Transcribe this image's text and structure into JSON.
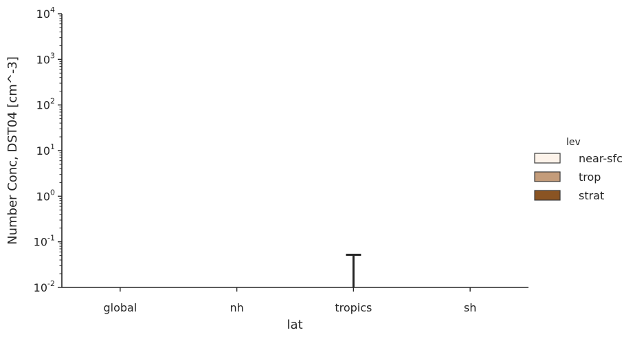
{
  "chart_data": {
    "type": "bar",
    "xlabel": "lat",
    "ylabel": "Number Conc, DST04 [cm^-3]",
    "yscale": "log",
    "ylim": [
      0.01,
      10000
    ],
    "y_ticks": [
      {
        "base": "10",
        "exp": "-2"
      },
      {
        "base": "10",
        "exp": "-1"
      },
      {
        "base": "10",
        "exp": "0"
      },
      {
        "base": "10",
        "exp": "1"
      },
      {
        "base": "10",
        "exp": "2"
      },
      {
        "base": "10",
        "exp": "3"
      },
      {
        "base": "10",
        "exp": "4"
      }
    ],
    "categories": [
      "global",
      "nh",
      "tropics",
      "sh"
    ],
    "legend": {
      "title": "lev",
      "placement": "right",
      "entries": [
        {
          "label": "near-sfc",
          "color": "#fdf3ea"
        },
        {
          "label": "trop",
          "color": "#c49c7a"
        },
        {
          "label": "strat",
          "color": "#8a5423"
        }
      ]
    },
    "series": [
      {
        "name": "near-sfc",
        "values": [
          null,
          null,
          null,
          null
        ]
      },
      {
        "name": "trop",
        "values": [
          null,
          null,
          null,
          null
        ]
      },
      {
        "name": "strat",
        "values": [
          null,
          null,
          null,
          null
        ]
      }
    ],
    "error_bars": [
      {
        "category": "tropics",
        "series": "trop",
        "upper": 0.052
      }
    ],
    "grid": false,
    "colors": {
      "axis": "#262626",
      "errorbar": "#262626"
    }
  }
}
